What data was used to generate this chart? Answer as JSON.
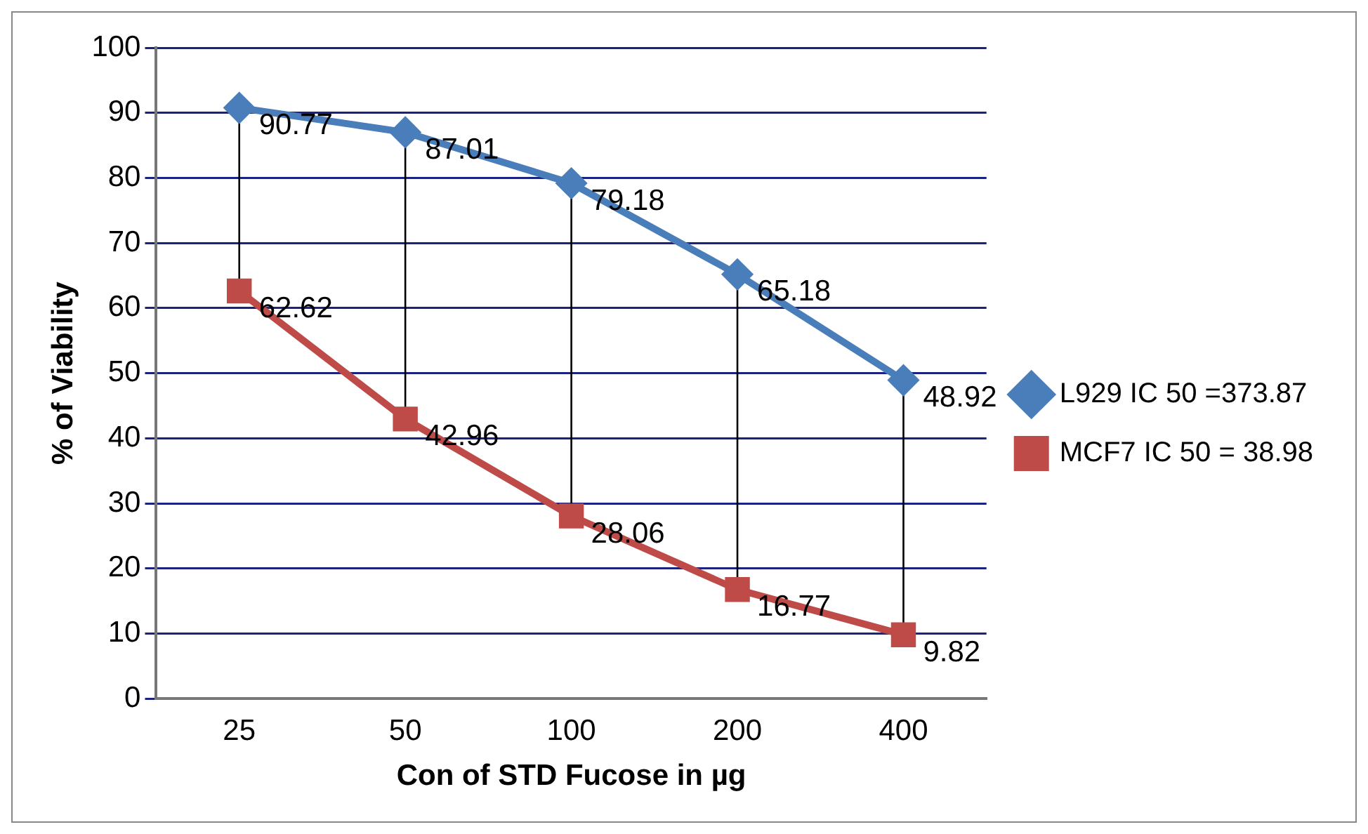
{
  "chart_data": {
    "type": "line",
    "xlabel": "Con of STD Fucose in µg",
    "ylabel": "% of Viability",
    "categories": [
      "25",
      "50",
      "100",
      "200",
      "400"
    ],
    "series": [
      {
        "name": "L929 IC 50 =373.87",
        "color": "#4a7ebb",
        "marker": "diamond",
        "values": [
          90.77,
          87.01,
          79.18,
          65.18,
          48.92
        ]
      },
      {
        "name": "MCF7 IC 50 = 38.98",
        "color": "#be4b48",
        "marker": "square",
        "values": [
          62.62,
          42.96,
          28.06,
          16.77,
          9.82
        ]
      }
    ],
    "ylim": [
      0,
      100
    ],
    "yticks": [
      0,
      10,
      20,
      30,
      40,
      50,
      60,
      70,
      80,
      90,
      100
    ],
    "grid": "y",
    "legend": "right",
    "data_labels": true
  }
}
